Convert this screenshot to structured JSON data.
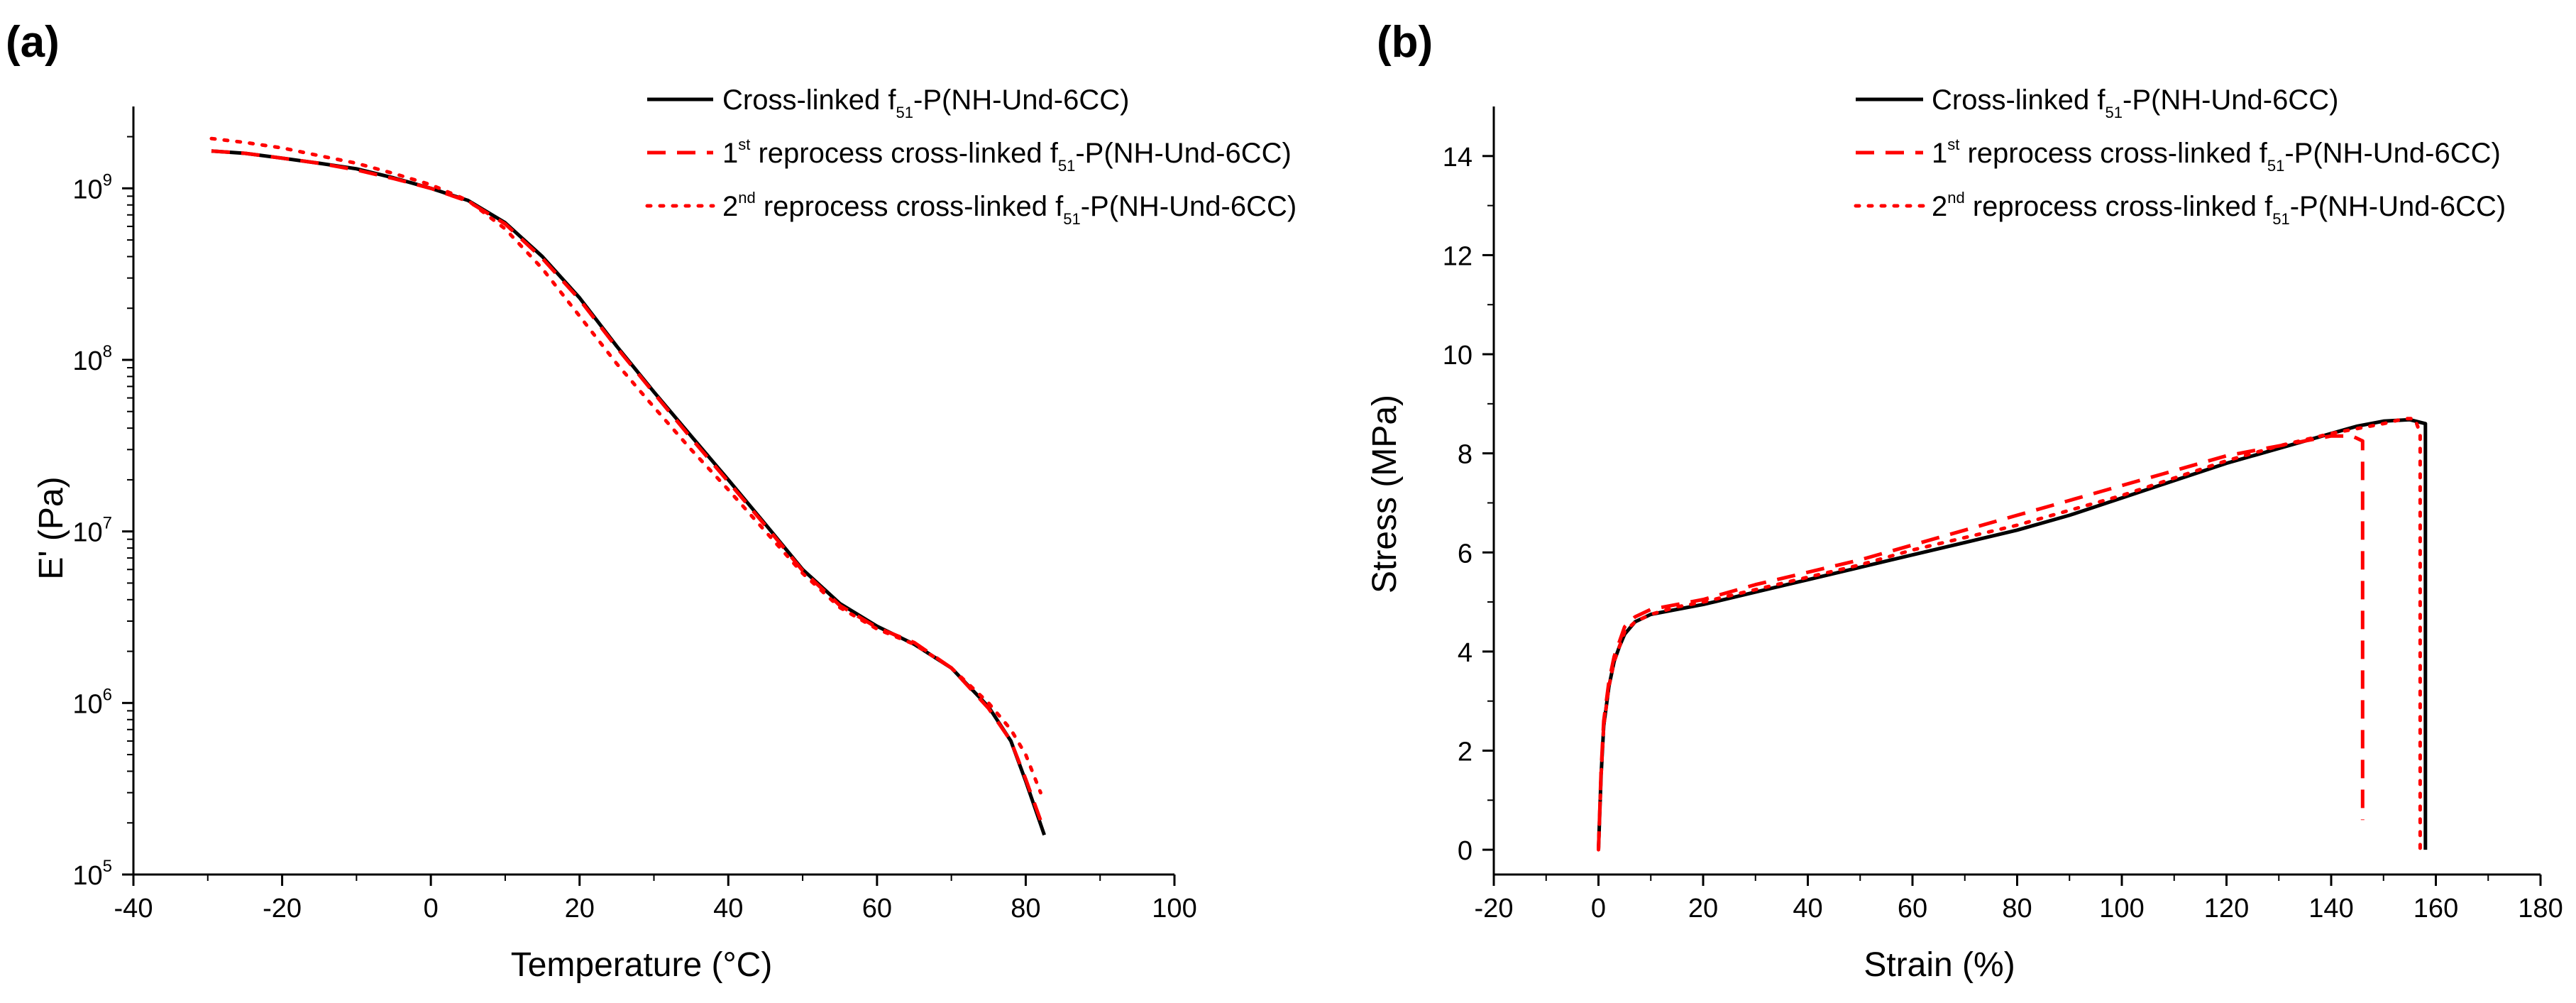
{
  "chart_data": [
    {
      "panel_label": "(a)",
      "type": "line",
      "y_scale": "log",
      "title": "",
      "xlabel": "Temperature (°C)",
      "ylabel": "E' (Pa)",
      "xlim": [
        -40,
        100
      ],
      "ylim": [
        100000,
        3000000000
      ],
      "x_ticks": [
        -40,
        -20,
        0,
        20,
        40,
        60,
        80,
        100
      ],
      "y_ticks": [
        {
          "value": 100000,
          "base": "10",
          "exp": "5"
        },
        {
          "value": 1000000,
          "base": "10",
          "exp": "6"
        },
        {
          "value": 10000000,
          "base": "10",
          "exp": "7"
        },
        {
          "value": 100000000,
          "base": "10",
          "exp": "8"
        },
        {
          "value": 1000000000,
          "base": "10",
          "exp": "9"
        }
      ],
      "legend_position": "top-right",
      "series": [
        {
          "name": "Cross-linked f51-P(NH-Und-6CC)",
          "legend": {
            "sup": "",
            "pre": "Cross-linked f",
            "sub": "51",
            "post": "-P(NH-Und-6CC)"
          },
          "color": "#000000",
          "dash": "solid",
          "x": [
            -29.5,
            -25,
            -20,
            -15,
            -10,
            -5,
            0,
            5,
            10,
            15,
            20,
            25,
            30,
            35,
            40,
            45,
            50,
            55,
            60,
            65,
            70,
            75,
            78,
            80,
            82.5
          ],
          "y": [
            1650000000.0,
            1600000000.0,
            1500000000.0,
            1400000000.0,
            1300000000.0,
            1150000000.0,
            1000000000.0,
            850000000.0,
            630000000.0,
            400000000.0,
            230000000.0,
            120000000.0,
            65000000.0,
            36000000.0,
            20000000.0,
            11000000.0,
            6000000.0,
            3800000.0,
            2800000.0,
            2200000.0,
            1600000.0,
            950000.0,
            600000.0,
            350000.0,
            170000.0
          ]
        },
        {
          "name": "1st reprocess cross-linked f51-P(NH-Und-6CC)",
          "legend": {
            "sup": "st",
            "pre": "1",
            "mid": " reprocess cross-linked f",
            "sub": "51",
            "post": "-P(NH-Und-6CC)"
          },
          "color": "#ff0000",
          "dash": "dashed",
          "x": [
            -29.5,
            -25,
            -20,
            -15,
            -10,
            -5,
            0,
            5,
            10,
            15,
            20,
            25,
            30,
            35,
            40,
            45,
            50,
            55,
            60,
            65,
            70,
            75,
            78,
            80,
            82.5
          ],
          "y": [
            1650000000.0,
            1600000000.0,
            1500000000.0,
            1400000000.0,
            1280000000.0,
            1140000000.0,
            1000000000.0,
            840000000.0,
            620000000.0,
            390000000.0,
            225000000.0,
            118000000.0,
            64000000.0,
            35000000.0,
            19500000.0,
            10800000.0,
            5900000.0,
            3700000.0,
            2750000.0,
            2250000.0,
            1600000.0,
            930000.0,
            600000.0,
            360000.0,
            180000.0
          ]
        },
        {
          "name": "2nd reprocess cross-linked f51-P(NH-Und-6CC)",
          "legend": {
            "sup": "nd",
            "pre": "2",
            "mid": " reprocess cross-linked f",
            "sub": "51",
            "post": "-P(NH-Und-6CC)"
          },
          "color": "#ff0000",
          "dash": "dotted",
          "x": [
            -29.5,
            -25,
            -20,
            -15,
            -10,
            -5,
            0,
            5,
            10,
            15,
            20,
            25,
            30,
            35,
            40,
            45,
            50,
            55,
            60,
            65,
            70,
            75,
            78,
            80,
            82
          ],
          "y": [
            1950000000.0,
            1850000000.0,
            1720000000.0,
            1550000000.0,
            1400000000.0,
            1220000000.0,
            1050000000.0,
            850000000.0,
            580000000.0,
            340000000.0,
            180000000.0,
            95000000.0,
            53000000.0,
            30000000.0,
            17500000.0,
            10000000.0,
            5700000.0,
            3600000.0,
            2700000.0,
            2200000.0,
            1600000.0,
            1000000.0,
            700000.0,
            500000.0,
            300000.0
          ]
        }
      ]
    },
    {
      "panel_label": "(b)",
      "type": "line",
      "title": "",
      "xlabel": "Strain (%)",
      "ylabel": "Stress (MPa)",
      "xlim": [
        -20,
        180
      ],
      "ylim": [
        -0.5,
        15
      ],
      "x_ticks": [
        -20,
        0,
        20,
        40,
        60,
        80,
        100,
        120,
        140,
        160,
        180
      ],
      "y_ticks": [
        0,
        2,
        4,
        6,
        8,
        10,
        12,
        14
      ],
      "legend_position": "top-right",
      "series": [
        {
          "name": "Cross-linked f51-P(NH-Und-6CC)",
          "legend": {
            "sup": "",
            "pre": "Cross-linked f",
            "sub": "51",
            "post": "-P(NH-Und-6CC)"
          },
          "color": "#000000",
          "dash": "solid",
          "x": [
            0,
            0.5,
            1,
            2,
            3,
            4,
            5,
            7,
            10,
            15,
            20,
            30,
            40,
            50,
            60,
            70,
            80,
            90,
            100,
            110,
            120,
            130,
            140,
            145,
            150,
            155,
            158,
            158,
            158,
            158
          ],
          "y": [
            0,
            1.5,
            2.5,
            3.3,
            3.8,
            4.1,
            4.35,
            4.6,
            4.75,
            4.85,
            4.95,
            5.2,
            5.45,
            5.7,
            5.95,
            6.2,
            6.45,
            6.75,
            7.1,
            7.45,
            7.8,
            8.1,
            8.4,
            8.55,
            8.65,
            8.68,
            8.6,
            5.4,
            0,
            0
          ]
        },
        {
          "name": "1st reprocess cross-linked f51-P(NH-Und-6CC)",
          "legend": {
            "sup": "st",
            "pre": "1",
            "mid": " reprocess cross-linked f",
            "sub": "51",
            "post": "-P(NH-Und-6CC)"
          },
          "color": "#ff0000",
          "dash": "dashed",
          "x": [
            0,
            0.5,
            1,
            2,
            3,
            4,
            5,
            7,
            10,
            15,
            20,
            30,
            40,
            50,
            60,
            70,
            80,
            90,
            100,
            110,
            120,
            130,
            140,
            144,
            146,
            146
          ],
          "y": [
            0,
            1.6,
            2.6,
            3.4,
            3.9,
            4.2,
            4.5,
            4.7,
            4.85,
            4.95,
            5.05,
            5.35,
            5.6,
            5.85,
            6.15,
            6.45,
            6.75,
            7.05,
            7.35,
            7.65,
            7.95,
            8.15,
            8.35,
            8.35,
            8.25,
            0.6
          ]
        },
        {
          "name": "2nd reprocess cross-linked f51-P(NH-Und-6CC)",
          "legend": {
            "sup": "nd",
            "pre": "2",
            "mid": " reprocess cross-linked f",
            "sub": "51",
            "post": "-P(NH-Und-6CC)"
          },
          "color": "#ff0000",
          "dash": "dotted",
          "x": [
            0,
            0.5,
            1,
            2,
            3,
            4,
            5,
            7,
            10,
            15,
            20,
            30,
            40,
            50,
            60,
            70,
            80,
            90,
            100,
            110,
            120,
            130,
            140,
            150,
            154,
            156,
            157,
            157
          ],
          "y": [
            0,
            1.5,
            2.5,
            3.3,
            3.8,
            4.1,
            4.4,
            4.6,
            4.75,
            4.9,
            5.0,
            5.25,
            5.5,
            5.75,
            6.05,
            6.3,
            6.55,
            6.85,
            7.15,
            7.5,
            7.85,
            8.15,
            8.4,
            8.6,
            8.7,
            8.7,
            8.4,
            0
          ]
        }
      ]
    }
  ]
}
